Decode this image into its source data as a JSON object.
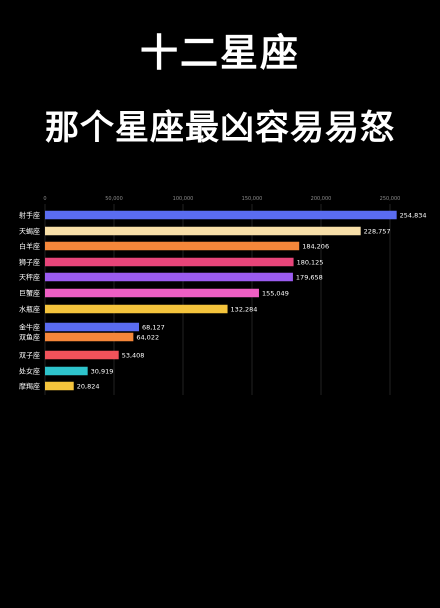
{
  "header": {
    "title": "十二星座",
    "subtitle": "那个星座最凶容易易怒"
  },
  "colors": {
    "background": "#000000",
    "grid": "#3a3a3a",
    "tick": "#8a8a8a",
    "label": "#ffffff"
  },
  "chart_data": {
    "type": "bar",
    "orientation": "horizontal",
    "title": "",
    "xlabel": "",
    "ylabel": "",
    "xlim": [
      0,
      250000
    ],
    "x_ticks": [
      0,
      50000,
      100000,
      150000,
      200000,
      250000
    ],
    "x_tick_labels": [
      "0",
      "50,000",
      "100,000",
      "150,000",
      "200,000",
      "250,000"
    ],
    "grid": "vertical",
    "categories": [
      "射手座",
      "天蝎座",
      "白羊座",
      "狮子座",
      "天秤座",
      "巨蟹座",
      "水瓶座",
      "金牛座",
      "双鱼座",
      "双子座",
      "处女座",
      "摩羯座"
    ],
    "values": [
      254834,
      228757,
      184206,
      180125,
      179658,
      155049,
      132284,
      68127,
      64022,
      53408,
      30919,
      20824
    ],
    "value_labels": [
      "254,834",
      "228,757",
      "184,206",
      "180,125",
      "179,658",
      "155,049",
      "132,284",
      "68,127",
      "64,022",
      "53,408",
      "30,919",
      "20,824"
    ],
    "colors": [
      "#5a6cf0",
      "#f7dfa8",
      "#f5873a",
      "#e8457a",
      "#9b5cf0",
      "#ef5fc4",
      "#f4c43c",
      "#5a6cf0",
      "#f5873a",
      "#f0525a",
      "#2ec4cc",
      "#f4c43c"
    ]
  }
}
